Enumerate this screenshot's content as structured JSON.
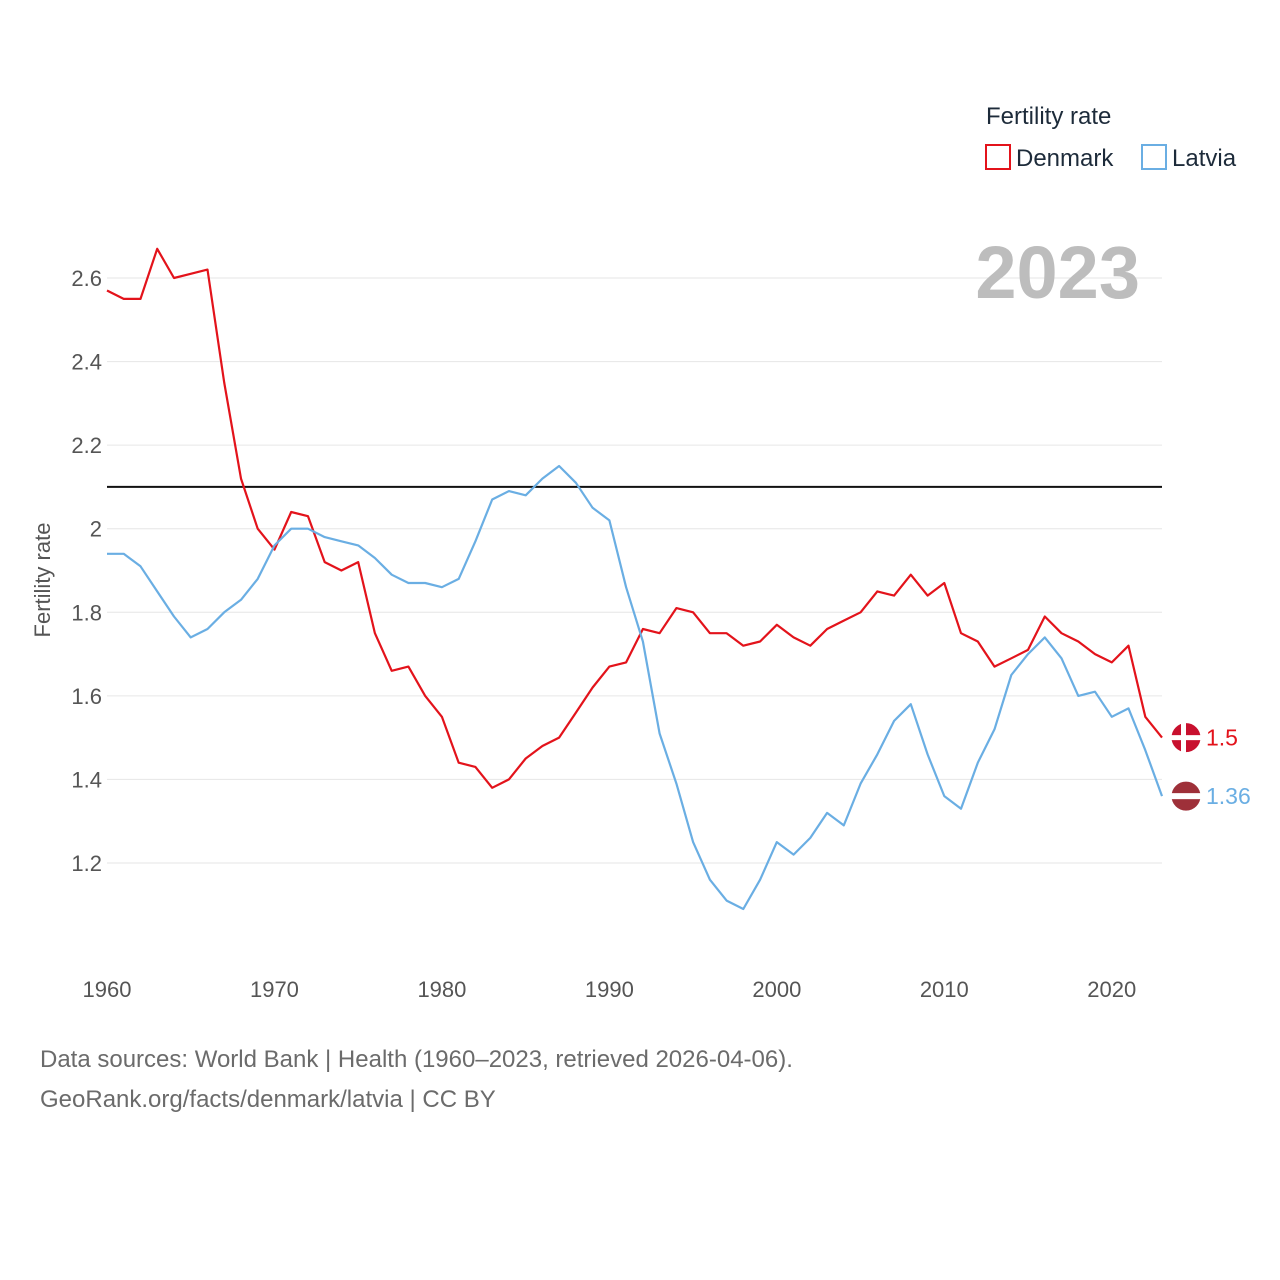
{
  "chart_data": {
    "type": "line",
    "ylabel": "Fertility rate",
    "ylim": [
      1.0,
      2.72
    ],
    "xlim": [
      1960,
      2023
    ],
    "y_ticks": [
      1.2,
      1.4,
      1.6,
      1.8,
      2.0,
      2.2,
      2.4,
      2.6
    ],
    "y_tick_labels": [
      "1.2",
      "1.4",
      "1.6",
      "1.8",
      "2",
      "2.2",
      "2.4",
      "2.6"
    ],
    "x_ticks": [
      1960,
      1970,
      1980,
      1990,
      2000,
      2010,
      2020
    ],
    "x_tick_labels": [
      "1960",
      "1970",
      "1980",
      "1990",
      "2000",
      "2010",
      "2020"
    ],
    "year_label": "2023",
    "reference_line": 2.1,
    "legend_title": "Fertility rate",
    "x": [
      1960,
      1961,
      1962,
      1963,
      1964,
      1965,
      1966,
      1967,
      1968,
      1969,
      1970,
      1971,
      1972,
      1973,
      1974,
      1975,
      1976,
      1977,
      1978,
      1979,
      1980,
      1981,
      1982,
      1983,
      1984,
      1985,
      1986,
      1987,
      1988,
      1989,
      1990,
      1991,
      1992,
      1993,
      1994,
      1995,
      1996,
      1997,
      1998,
      1999,
      2000,
      2001,
      2002,
      2003,
      2004,
      2005,
      2006,
      2007,
      2008,
      2009,
      2010,
      2011,
      2012,
      2013,
      2014,
      2015,
      2016,
      2017,
      2018,
      2019,
      2020,
      2021,
      2022,
      2023
    ],
    "series": [
      {
        "name": "Denmark",
        "color": "#e3131b",
        "end_label": "1.5",
        "flag": "denmark-flag",
        "values": [
          2.57,
          2.55,
          2.55,
          2.67,
          2.6,
          2.61,
          2.62,
          2.35,
          2.12,
          2.0,
          1.95,
          2.04,
          2.03,
          1.92,
          1.9,
          1.92,
          1.75,
          1.66,
          1.67,
          1.6,
          1.55,
          1.44,
          1.43,
          1.38,
          1.4,
          1.45,
          1.48,
          1.5,
          1.56,
          1.62,
          1.67,
          1.68,
          1.76,
          1.75,
          1.81,
          1.8,
          1.75,
          1.75,
          1.72,
          1.73,
          1.77,
          1.74,
          1.72,
          1.76,
          1.78,
          1.8,
          1.85,
          1.84,
          1.89,
          1.84,
          1.87,
          1.75,
          1.73,
          1.67,
          1.69,
          1.71,
          1.79,
          1.75,
          1.73,
          1.7,
          1.68,
          1.72,
          1.55,
          1.5
        ]
      },
      {
        "name": "Latvia",
        "color": "#6aaee3",
        "end_label": "1.36",
        "flag": "latvia-flag",
        "values": [
          1.94,
          1.94,
          1.91,
          1.85,
          1.79,
          1.74,
          1.76,
          1.8,
          1.83,
          1.88,
          1.96,
          2.0,
          2.0,
          1.98,
          1.97,
          1.96,
          1.93,
          1.89,
          1.87,
          1.87,
          1.86,
          1.88,
          1.97,
          2.07,
          2.09,
          2.08,
          2.12,
          2.15,
          2.11,
          2.05,
          2.02,
          1.86,
          1.73,
          1.51,
          1.39,
          1.25,
          1.16,
          1.11,
          1.09,
          1.16,
          1.25,
          1.22,
          1.26,
          1.32,
          1.29,
          1.39,
          1.46,
          1.54,
          1.58,
          1.46,
          1.36,
          1.33,
          1.44,
          1.52,
          1.65,
          1.7,
          1.74,
          1.69,
          1.6,
          1.61,
          1.55,
          1.57,
          1.47,
          1.36
        ]
      }
    ]
  },
  "source": {
    "line1": "Data sources: World Bank | Health (1960–2023, retrieved 2026-04-06).",
    "line2": "GeoRank.org/facts/denmark/latvia | CC BY"
  }
}
